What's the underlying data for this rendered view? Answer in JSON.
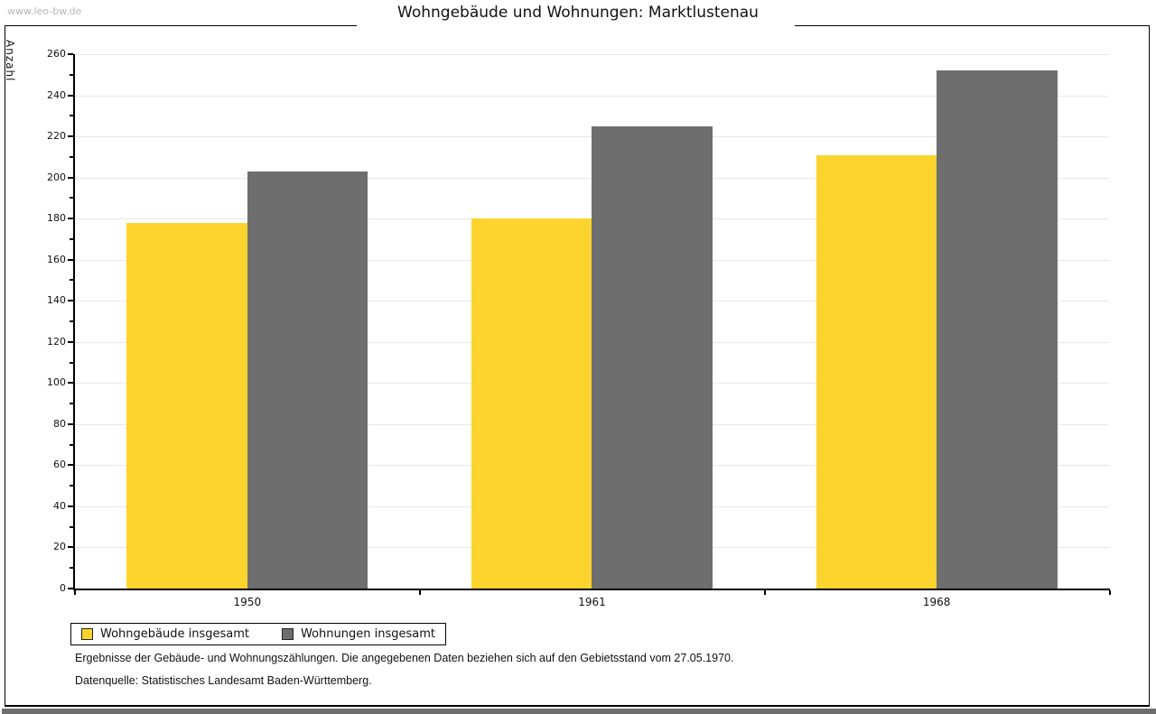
{
  "watermark": "www.leo-bw.de",
  "chart_data": {
    "type": "bar",
    "title": "Wohngebäude und Wohnungen: Marktlustenau",
    "ylabel": "Anzahl",
    "xlabel": "",
    "ylim": [
      0,
      260
    ],
    "ytick_major": 20,
    "ytick_minor": 10,
    "grid": true,
    "legend_position": "bottom-left",
    "categories": [
      "1950",
      "1961",
      "1968"
    ],
    "series": [
      {
        "name": "Wohngebäude insgesamt",
        "color": "#fdd42e",
        "values": [
          178,
          180,
          211
        ]
      },
      {
        "name": "Wohnungen insgesamt",
        "color": "#6e6e6e",
        "values": [
          203,
          225,
          252
        ]
      }
    ],
    "notes": [
      "Ergebnisse der Gebäude- und Wohnungszählungen. Die angegebenen Daten beziehen sich auf den Gebietsstand vom 27.05.1970.",
      "Datenquelle: Statistisches Landesamt Baden-Württemberg."
    ]
  }
}
